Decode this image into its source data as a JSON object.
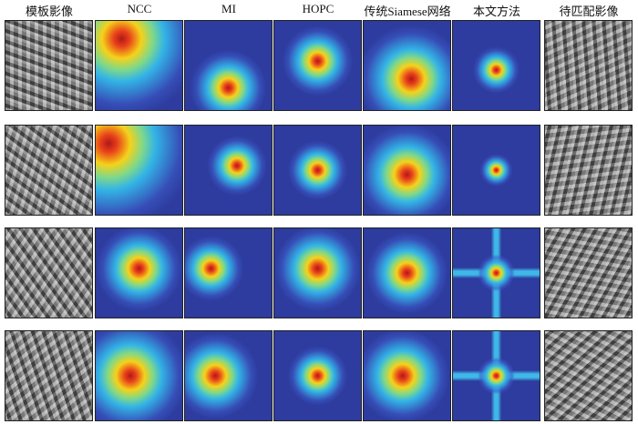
{
  "columns": [
    "模板影像",
    "NCC",
    "MI",
    "HOPC",
    "传统Siamese网络",
    "本文方法",
    "待匹配影像"
  ]
}
